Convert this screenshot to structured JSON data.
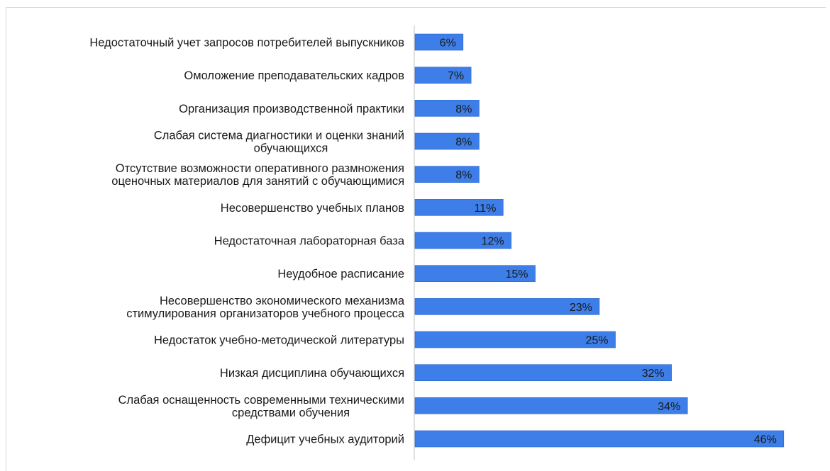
{
  "chart_data": {
    "type": "bar",
    "orientation": "horizontal",
    "title": "",
    "xlabel": "",
    "ylabel": "",
    "grid": false,
    "legend": "none",
    "categories": [
      [
        "Недостаточный учет запросов потребителей выпускников"
      ],
      [
        "Омоложение преподавательских кадров"
      ],
      [
        "Организация производственной практики"
      ],
      [
        "Слабая система диагностики и оценки знаний",
        "обучающихся"
      ],
      [
        "Отсутствие возможности оперативного размножения",
        "оценочных материалов для занятий с обучающимися"
      ],
      [
        "Несовершенство учебных планов"
      ],
      [
        "Недостаточная лабораторная база"
      ],
      [
        "Неудобное расписание"
      ],
      [
        "Несовершенство экономического механизма",
        "стимулирования  организаторов учебного процесса"
      ],
      [
        "Недостаток учебно-методической литературы"
      ],
      [
        "Низкая дисциплина  обучающихся"
      ],
      [
        "Слабая оснащенность современными техническими",
        "средствами обучения"
      ],
      [
        "Дефицит учебных аудиторий"
      ]
    ],
    "values": [
      6,
      7,
      8,
      8,
      8,
      11,
      12,
      15,
      23,
      25,
      32,
      34,
      46
    ],
    "data_labels": [
      "6%",
      "7%",
      "8%",
      "8%",
      "8%",
      "11%",
      "12%",
      "15%",
      "23%",
      "25%",
      "32%",
      "34%",
      "46%"
    ],
    "unit": "%",
    "colors": {
      "bar": "#3d7ee8",
      "bar_stroke": "#2a64c9",
      "axis": "#bfbfbf",
      "text": "#1a1a1a"
    }
  }
}
